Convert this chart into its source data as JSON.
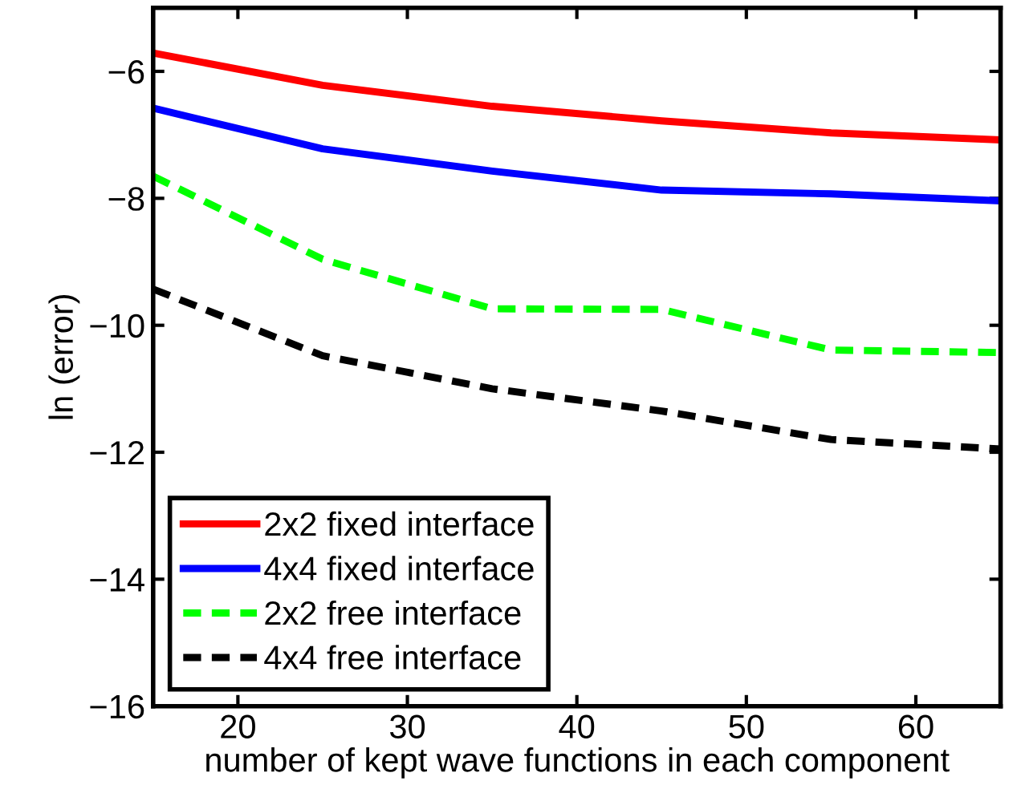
{
  "chart_data": {
    "type": "line",
    "xlabel": "number of kept wave functions in each component",
    "ylabel": "ln (error)",
    "x": [
      15,
      25,
      35,
      45,
      55,
      65
    ],
    "series": [
      {
        "name": "2x2 fixed interface",
        "color": "#ff0000",
        "line_style": "solid",
        "values": [
          -5.71,
          -6.22,
          -6.55,
          -6.78,
          -6.97,
          -7.08
        ]
      },
      {
        "name": "4x4 fixed interface",
        "color": "#0000ff",
        "line_style": "solid",
        "values": [
          -6.58,
          -7.22,
          -7.57,
          -7.87,
          -7.93,
          -8.04
        ]
      },
      {
        "name": "2x2 free interface",
        "color": "#00ff00",
        "line_style": "dashed",
        "values": [
          -7.65,
          -8.96,
          -9.74,
          -9.75,
          -10.39,
          -10.43
        ]
      },
      {
        "name": "4x4 free interface",
        "color": "#000000",
        "line_style": "dashed",
        "values": [
          -9.43,
          -10.48,
          -11.0,
          -11.35,
          -11.8,
          -11.95
        ]
      }
    ],
    "xlim": [
      15,
      65
    ],
    "ylim": [
      -16,
      -5
    ],
    "xticks": [
      20,
      30,
      40,
      50,
      60
    ],
    "yticks": [
      -16,
      -14,
      -12,
      -10,
      -8,
      -6
    ],
    "grid": false,
    "legend": "bottom left",
    "marker": "none"
  }
}
